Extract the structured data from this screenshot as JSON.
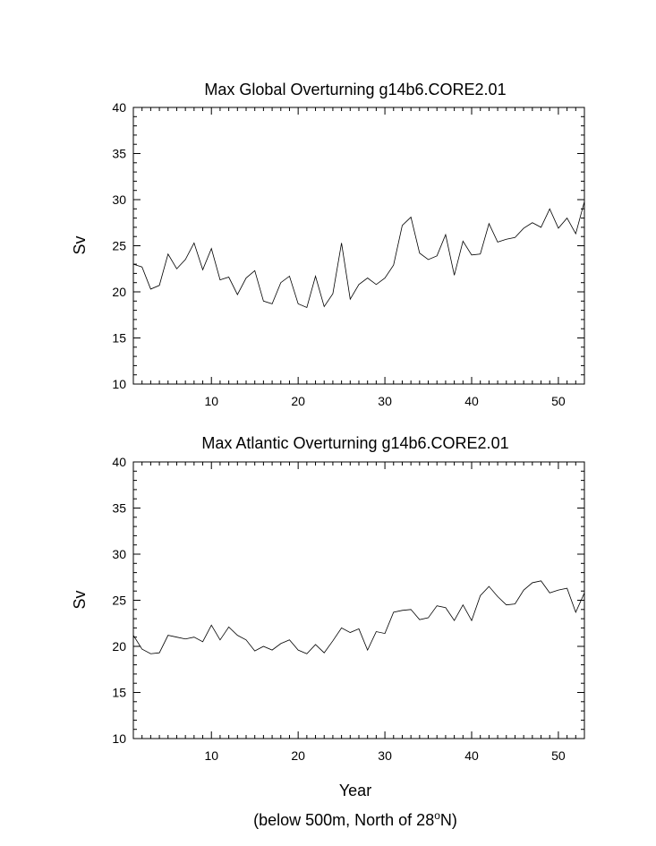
{
  "chart_data": [
    {
      "type": "line",
      "title": "Max Global Overturning g14b6.CORE2.01",
      "xlabel": "",
      "ylabel": "Sv",
      "xlim": [
        1,
        53
      ],
      "ylim": [
        10,
        40
      ],
      "xticks": [
        10,
        20,
        30,
        40,
        50
      ],
      "yticks": [
        10,
        15,
        20,
        25,
        30,
        35,
        40
      ],
      "grid": false,
      "x": [
        1,
        2,
        3,
        4,
        5,
        6,
        7,
        8,
        9,
        10,
        11,
        12,
        13,
        14,
        15,
        16,
        17,
        18,
        19,
        20,
        21,
        22,
        23,
        24,
        25,
        26,
        27,
        28,
        29,
        30,
        31,
        32,
        33,
        34,
        35,
        36,
        37,
        38,
        39,
        40,
        41,
        42,
        43,
        44,
        45,
        46,
        47,
        48,
        49,
        50,
        51,
        52,
        53
      ],
      "series": [
        {
          "values": [
            23.0,
            22.7,
            20.3,
            20.7,
            24.1,
            22.5,
            23.5,
            25.3,
            22.4,
            24.7,
            21.3,
            21.6,
            19.7,
            21.5,
            22.3,
            19.0,
            18.7,
            21.0,
            21.7,
            18.7,
            18.3,
            21.7,
            18.4,
            19.8,
            25.3,
            19.2,
            20.8,
            21.5,
            20.8,
            21.5,
            22.9,
            27.2,
            28.1,
            24.2,
            23.5,
            23.9,
            26.2,
            21.8,
            25.5,
            24.0,
            24.1,
            27.4,
            25.4,
            25.7,
            25.9,
            26.9,
            27.5,
            27.0,
            29.0,
            26.9,
            28.0,
            26.3,
            29.8
          ]
        }
      ]
    },
    {
      "type": "line",
      "title": "Max Atlantic Overturning g14b6.CORE2.01",
      "xlabel": "Year",
      "ylabel": "Sv",
      "xlim": [
        1,
        53
      ],
      "ylim": [
        10,
        40
      ],
      "xticks": [
        10,
        20,
        30,
        40,
        50
      ],
      "yticks": [
        10,
        15,
        20,
        25,
        30,
        35,
        40
      ],
      "grid": false,
      "x": [
        1,
        2,
        3,
        4,
        5,
        6,
        7,
        8,
        9,
        10,
        11,
        12,
        13,
        14,
        15,
        16,
        17,
        18,
        19,
        20,
        21,
        22,
        23,
        24,
        25,
        26,
        27,
        28,
        29,
        30,
        31,
        32,
        33,
        34,
        35,
        36,
        37,
        38,
        39,
        40,
        41,
        42,
        43,
        44,
        45,
        46,
        47,
        48,
        49,
        50,
        51,
        52,
        53
      ],
      "series": [
        {
          "values": [
            21.2,
            19.7,
            19.2,
            19.3,
            21.2,
            21.0,
            20.8,
            21.0,
            20.5,
            22.3,
            20.7,
            22.1,
            21.2,
            20.7,
            19.5,
            20.0,
            19.6,
            20.3,
            20.7,
            19.6,
            19.2,
            20.2,
            19.3,
            20.6,
            22.0,
            21.5,
            21.9,
            19.6,
            21.6,
            21.4,
            23.7,
            23.9,
            24.0,
            22.9,
            23.1,
            24.4,
            24.2,
            22.8,
            24.5,
            22.8,
            25.5,
            26.5,
            25.4,
            24.5,
            24.6,
            26.1,
            26.9,
            27.1,
            25.8,
            26.1,
            26.3,
            23.7,
            25.8
          ]
        }
      ]
    }
  ],
  "footnote": {
    "prefix": "(below 500m, North of 28",
    "superscript": "o",
    "suffix": "N)"
  }
}
